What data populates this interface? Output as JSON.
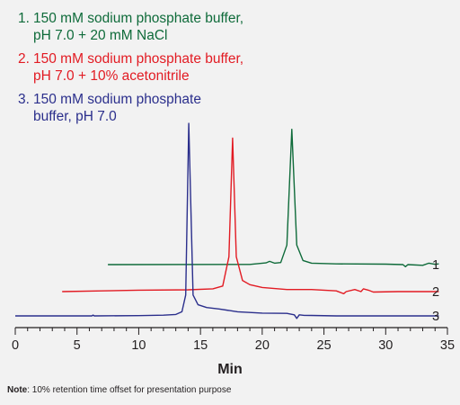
{
  "chart_data": {
    "type": "line",
    "xlabel": "Min",
    "xlim": [
      0,
      35
    ],
    "x_ticks": [
      0,
      5,
      10,
      15,
      20,
      25,
      30,
      35
    ],
    "legend": [
      {
        "number": "1.",
        "lines": [
          "150 mM sodium phosphate buffer,",
          "pH 7.0 + 20 mM NaCl"
        ],
        "color": "#0f6b3a"
      },
      {
        "number": "2.",
        "lines": [
          "150 mM sodium phosphate buffer,",
          "pH 7.0 + 10% acetonitrile"
        ],
        "color": "#e21b23"
      },
      {
        "number": "3.",
        "lines": [
          "150 mM sodium phosphate",
          "buffer, pH 7.0"
        ],
        "color": "#2b2f8c"
      }
    ],
    "series": [
      {
        "label": "1",
        "color": "#0f6b3a",
        "baseline_note": "offset trace",
        "points": [
          [
            7.5,
            0
          ],
          [
            19,
            0.1
          ],
          [
            20.3,
            1.2
          ],
          [
            20.6,
            2.3
          ],
          [
            21.0,
            1.0
          ],
          [
            21.5,
            1.5
          ],
          [
            22.0,
            14
          ],
          [
            22.4,
            97
          ],
          [
            22.8,
            14
          ],
          [
            23.3,
            3
          ],
          [
            24,
            1
          ],
          [
            26,
            0.5
          ],
          [
            30,
            0.3
          ],
          [
            31.4,
            0
          ],
          [
            31.6,
            -1.5
          ],
          [
            31.8,
            0
          ],
          [
            33,
            -0.5
          ],
          [
            33.5,
            1.0
          ],
          [
            34,
            0.2
          ],
          [
            34.3,
            0.5
          ]
        ]
      },
      {
        "label": "2",
        "color": "#e21b23",
        "points": [
          [
            3.8,
            0
          ],
          [
            7,
            0.5
          ],
          [
            10,
            1
          ],
          [
            14,
            1.3
          ],
          [
            16,
            2
          ],
          [
            16.8,
            4
          ],
          [
            17.3,
            25
          ],
          [
            17.6,
            110
          ],
          [
            17.9,
            25
          ],
          [
            18.4,
            8
          ],
          [
            19,
            5
          ],
          [
            20,
            3
          ],
          [
            22,
            1.5
          ],
          [
            24,
            1.5
          ],
          [
            26,
            0.5
          ],
          [
            26.6,
            -1.5
          ],
          [
            26.8,
            0
          ],
          [
            27.5,
            1.5
          ],
          [
            28,
            0
          ],
          [
            28.2,
            2
          ],
          [
            28.6,
            1
          ],
          [
            29,
            -0.3
          ],
          [
            31,
            0
          ],
          [
            34.3,
            0
          ]
        ]
      },
      {
        "label": "3",
        "color": "#2b2f8c",
        "points": [
          [
            0,
            0
          ],
          [
            6.2,
            0
          ],
          [
            6.3,
            0.6
          ],
          [
            6.4,
            0
          ],
          [
            10,
            0.2
          ],
          [
            12,
            0.5
          ],
          [
            13,
            1
          ],
          [
            13.5,
            3
          ],
          [
            13.8,
            15
          ],
          [
            14.05,
            138
          ],
          [
            14.4,
            15
          ],
          [
            14.8,
            8
          ],
          [
            15.5,
            6
          ],
          [
            16.5,
            5
          ],
          [
            18,
            3
          ],
          [
            20,
            2
          ],
          [
            22,
            1.8
          ],
          [
            22.6,
            0.8
          ],
          [
            22.8,
            -1.8
          ],
          [
            23.0,
            0.8
          ],
          [
            23.4,
            0.4
          ],
          [
            24,
            0.3
          ],
          [
            26,
            0
          ],
          [
            30,
            0
          ],
          [
            34.3,
            0
          ]
        ]
      }
    ]
  },
  "note": {
    "label": "Note",
    "text": ": 10% retention time offset for presentation purpose"
  }
}
